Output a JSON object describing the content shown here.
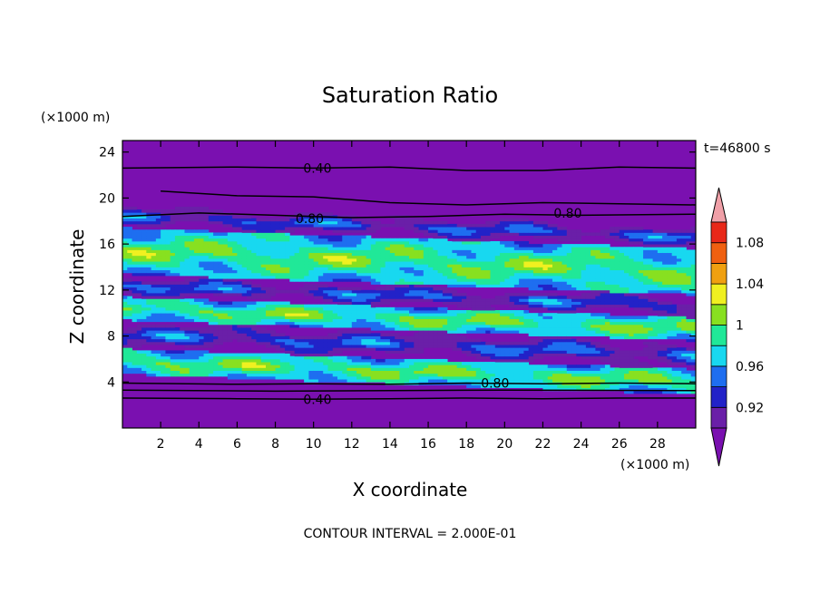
{
  "chart_data": {
    "type": "heatmap",
    "title": "Saturation Ratio",
    "xlabel": "X coordinate",
    "ylabel": "Z coordinate",
    "x_unit": "(×1000 m)",
    "y_unit": "(×1000 m)",
    "time_label": "t=46800 s",
    "footer": "CONTOUR INTERVAL = 2.000E-01",
    "xlim": [
      0,
      30
    ],
    "ylim": [
      0,
      25
    ],
    "x_ticks": [
      2,
      4,
      6,
      8,
      10,
      12,
      14,
      16,
      18,
      20,
      22,
      24,
      26,
      28
    ],
    "y_ticks": [
      4,
      8,
      12,
      16,
      20,
      24
    ],
    "colorbar": {
      "levels": [
        0.9,
        0.92,
        0.94,
        0.96,
        0.98,
        1.0,
        1.02,
        1.04,
        1.06,
        1.08,
        1.1
      ],
      "labels": [
        "0.92",
        "0.96",
        "1",
        "1.04",
        "1.08"
      ],
      "label_values": [
        0.92,
        0.96,
        1.0,
        1.04,
        1.08
      ],
      "colors": [
        "#6a1fa8",
        "#2222c8",
        "#1e6ef0",
        "#18d8f0",
        "#20e898",
        "#88e020",
        "#f0f020",
        "#f0a010",
        "#f06010",
        "#e82818"
      ],
      "under_color": "#7a10b0",
      "over_color": "#f0a0a8"
    },
    "bands": [
      {
        "z": [
          0,
          3.8
        ],
        "level": "under"
      },
      {
        "z": [
          3.8,
          6.0
        ],
        "level": "mixed_green_cyan"
      },
      {
        "z": [
          6.0,
          8.5
        ],
        "level": "mixed_purple_blue"
      },
      {
        "z": [
          8.5,
          10.5
        ],
        "level": "mixed_green_cyan"
      },
      {
        "z": [
          10.5,
          12.5
        ],
        "level": "mixed_purple_blue"
      },
      {
        "z": [
          12.5,
          16.5
        ],
        "level": "mixed_green_cyan"
      },
      {
        "z": [
          16.5,
          18.5
        ],
        "level": "mixed_purple_blue"
      },
      {
        "z": [
          18.5,
          25
        ],
        "level": "under"
      }
    ],
    "contour_labels": [
      {
        "text": "0.40",
        "x": 10.2,
        "z": 22.6
      },
      {
        "text": "0.80",
        "x": 9.8,
        "z": 18.2
      },
      {
        "text": "0.80",
        "x": 23.3,
        "z": 18.7
      },
      {
        "text": "0.80",
        "x": 19.5,
        "z": 3.9
      },
      {
        "text": "0.40",
        "x": 10.2,
        "z": 2.5
      }
    ],
    "contour_lines": [
      {
        "label": "0.40",
        "points": [
          [
            0,
            22.6
          ],
          [
            6,
            22.7
          ],
          [
            10,
            22.6
          ],
          [
            14,
            22.7
          ],
          [
            18,
            22.4
          ],
          [
            22,
            22.4
          ],
          [
            26,
            22.7
          ],
          [
            30,
            22.6
          ]
        ]
      },
      {
        "label": "0.80",
        "points": [
          [
            0,
            18.4
          ],
          [
            4,
            18.7
          ],
          [
            8,
            18.5
          ],
          [
            12,
            18.3
          ],
          [
            16,
            18.4
          ],
          [
            20,
            18.6
          ],
          [
            24,
            18.5
          ],
          [
            30,
            18.6
          ]
        ]
      },
      {
        "label": "0.80",
        "points": [
          [
            0,
            3.9
          ],
          [
            6,
            3.8
          ],
          [
            10,
            3.85
          ],
          [
            14,
            3.8
          ],
          [
            18,
            3.9
          ],
          [
            22,
            3.85
          ],
          [
            26,
            3.9
          ],
          [
            30,
            3.85
          ]
        ]
      },
      {
        "label": "0.40",
        "points": [
          [
            0,
            2.6
          ],
          [
            6,
            2.55
          ],
          [
            10,
            2.5
          ],
          [
            14,
            2.55
          ],
          [
            18,
            2.6
          ],
          [
            22,
            2.55
          ],
          [
            26,
            2.6
          ],
          [
            30,
            2.6
          ]
        ]
      },
      {
        "label": "",
        "points": [
          [
            0,
            3.3
          ],
          [
            8,
            3.2
          ],
          [
            14,
            3.25
          ],
          [
            20,
            3.3
          ],
          [
            30,
            3.25
          ]
        ]
      },
      {
        "label": "",
        "points": [
          [
            2,
            20.6
          ],
          [
            6,
            20.2
          ],
          [
            10,
            20.1
          ],
          [
            14,
            19.6
          ],
          [
            18,
            19.4
          ],
          [
            22,
            19.6
          ],
          [
            26,
            19.5
          ],
          [
            30,
            19.4
          ]
        ]
      }
    ]
  }
}
